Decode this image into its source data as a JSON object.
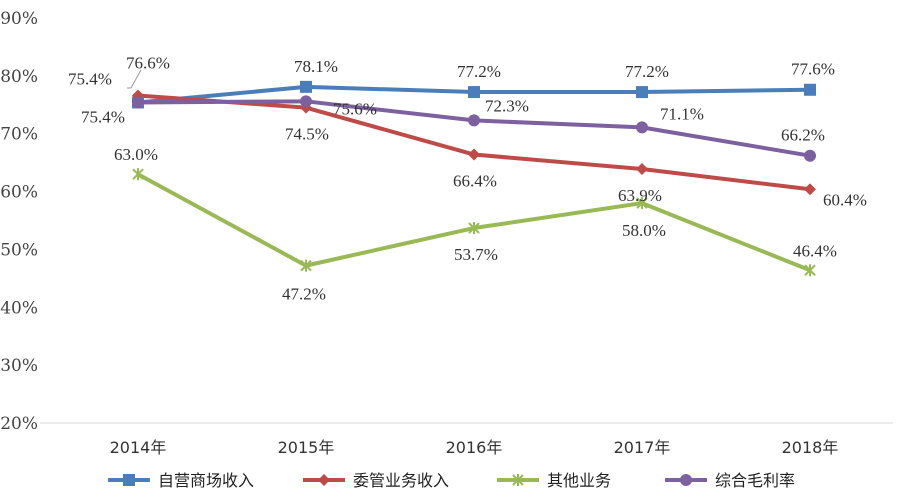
{
  "chart_data": {
    "type": "line",
    "title": "",
    "xlabel": "",
    "ylabel": "",
    "categories": [
      "2014年",
      "2015年",
      "2016年",
      "2017年",
      "2018年"
    ],
    "yticks": [
      "20%",
      "30%",
      "40%",
      "50%",
      "60%",
      "70%",
      "80%",
      "90%"
    ],
    "ylim": [
      20,
      90
    ],
    "grid": false,
    "legend_position": "bottom",
    "series": [
      {
        "name": "自营商场收入",
        "color": "#4a7ebb",
        "marker": "square",
        "values": [
          75.4,
          78.1,
          77.2,
          77.2,
          77.6
        ],
        "labels": [
          "75.4%",
          "78.1%",
          "77.2%",
          "77.2%",
          "77.6%"
        ]
      },
      {
        "name": "委管业务收入",
        "color": "#be4b48",
        "marker": "diamond",
        "values": [
          76.6,
          74.5,
          66.4,
          63.9,
          60.4
        ],
        "labels": [
          "76.6%",
          "74.5%",
          "66.4%",
          "63.9%",
          "60.4%"
        ]
      },
      {
        "name": "其他业务",
        "color": "#98b954",
        "marker": "star",
        "values": [
          63.0,
          47.2,
          53.7,
          58.0,
          46.4
        ],
        "labels": [
          "63.0%",
          "47.2%",
          "53.7%",
          "58.0%",
          "46.4%"
        ]
      },
      {
        "name": "综合毛利率",
        "color": "#7d60a0",
        "marker": "circle",
        "values": [
          75.4,
          75.6,
          72.3,
          71.1,
          66.2
        ],
        "labels": [
          "75.4%",
          "75.6%",
          "72.3%",
          "71.1%",
          "66.2%"
        ]
      }
    ]
  }
}
